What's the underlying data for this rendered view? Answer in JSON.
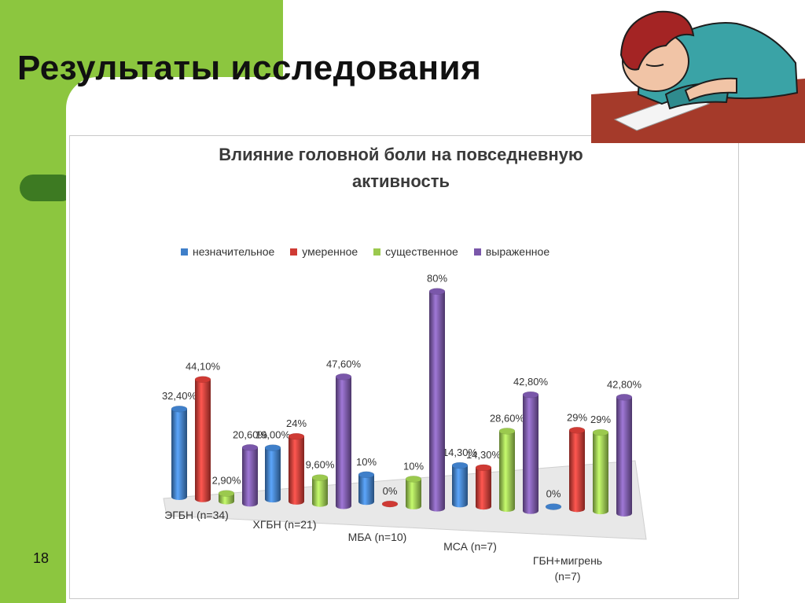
{
  "slide": {
    "title": "Результаты исследования",
    "page_number": "18"
  },
  "illustration": {
    "icon": "sleeping-person-icon"
  },
  "colors": {
    "green": "#8cc63f",
    "dark_green": "#3d7a22",
    "blue": "#3f7fc9",
    "red": "#cf3a34",
    "lightgreen": "#9bc94e",
    "purple": "#7a57aa"
  },
  "chart_data": {
    "type": "bar",
    "title": "Влияние головной боли на повседневную активность",
    "title_lines": [
      "Влияние головной боли на повседневную",
      "активность"
    ],
    "legend_position": "top",
    "grid": false,
    "ylim": [
      0,
      100
    ],
    "categories": [
      [
        "ЭГБН (n=34)"
      ],
      [
        "ХГБН (n=21)"
      ],
      [
        "МБА (n=10)"
      ],
      [
        "МСА (n=7)"
      ],
      [
        "ГБН+мигрень",
        "(n=7)"
      ]
    ],
    "series": [
      {
        "name": "незначительное",
        "color": "#3f7fc9",
        "values": [
          32.4,
          19.0,
          10,
          14.3,
          0
        ],
        "labels": [
          "32,40%",
          "19,00%",
          "10%",
          "14,30%",
          "0%"
        ]
      },
      {
        "name": "умеренное",
        "color": "#cf3a34",
        "values": [
          44.1,
          24,
          0,
          14.3,
          29
        ],
        "labels": [
          "44,10%",
          "24%",
          "0%",
          "14,30%",
          "29%"
        ]
      },
      {
        "name": "существенное",
        "color": "#9bc94e",
        "values": [
          2.9,
          9.6,
          10,
          28.6,
          29
        ],
        "labels": [
          "2,90%",
          "9,60%",
          "10%",
          "28,60%",
          "29%"
        ]
      },
      {
        "name": "выраженное",
        "color": "#7a57aa",
        "values": [
          20.6,
          47.6,
          80,
          42.8,
          42.8
        ],
        "labels": [
          "20,60%",
          "47,60%",
          "80%",
          "42,80%",
          "42,80%"
        ]
      }
    ]
  }
}
